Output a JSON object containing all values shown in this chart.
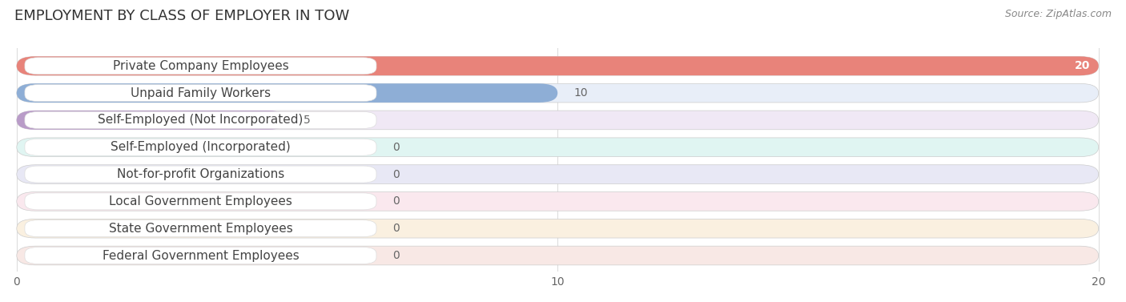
{
  "title": "EMPLOYMENT BY CLASS OF EMPLOYER IN TOW",
  "source": "Source: ZipAtlas.com",
  "categories": [
    "Private Company Employees",
    "Unpaid Family Workers",
    "Self-Employed (Not Incorporated)",
    "Self-Employed (Incorporated)",
    "Not-for-profit Organizations",
    "Local Government Employees",
    "State Government Employees",
    "Federal Government Employees"
  ],
  "values": [
    20,
    10,
    5,
    0,
    0,
    0,
    0,
    0
  ],
  "bar_colors": [
    "#e8837a",
    "#8eaed6",
    "#b99cc8",
    "#6ec4ba",
    "#9e9ecc",
    "#f09aaa",
    "#f5c080",
    "#f0a898"
  ],
  "bar_bg_colors": [
    "#f2e8e8",
    "#e8eef8",
    "#f0e8f5",
    "#e0f5f2",
    "#e8e8f5",
    "#fae8ee",
    "#faf0e0",
    "#f8e8e5"
  ],
  "xlim_max": 20,
  "xticks": [
    0,
    10,
    20
  ],
  "title_fontsize": 13,
  "label_fontsize": 11,
  "value_fontsize": 10,
  "background_color": "#ffffff",
  "grid_color": "#dddddd",
  "value_color_inside": "#ffffff",
  "value_color_outside": "#666666"
}
